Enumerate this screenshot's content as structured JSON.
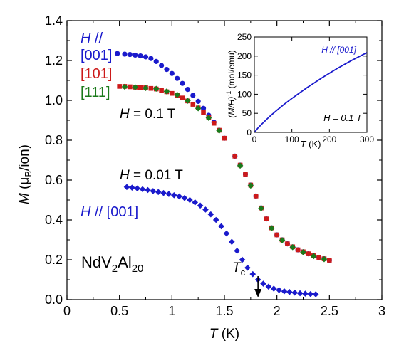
{
  "chart_data": [
    {
      "type": "scatter",
      "xlabel_italic": "T",
      "xlabel_unit": " (K)",
      "ylabel_italic": "M",
      "ylabel_mid": " (μ",
      "ylabel_sub": "B",
      "ylabel_end": "/ion)",
      "xlim": [
        0,
        3
      ],
      "ylim": [
        0,
        1.4
      ],
      "x_ticks": [
        0,
        0.5,
        1,
        1.5,
        2,
        2.5,
        3
      ],
      "x_tick_labels": [
        "0",
        "0.5",
        "1",
        "1.5",
        "2",
        "2.5",
        "3"
      ],
      "y_ticks": [
        0,
        0.2,
        0.4,
        0.6,
        0.8,
        1.0,
        1.2,
        1.4
      ],
      "y_tick_labels": [
        "0.0",
        "0.2",
        "0.4",
        "0.6",
        "0.8",
        "1.0",
        "1.2",
        "1.4"
      ],
      "grid": false,
      "legend": {
        "prefix_italic": "H",
        "prefix_rest": " //",
        "entries": [
          "[001]",
          "[101]",
          "[111]"
        ]
      },
      "annotations": {
        "field_high_italic": "H",
        "field_high_rest": " = 0.1 T",
        "field_low_italic": "H",
        "field_low_rest": " = 0.01 T",
        "dir_low_italic": "H",
        "dir_low_rest": " // [001]",
        "compound_a": "NdV",
        "compound_sub1": "2",
        "compound_b": "Al",
        "compound_sub2": "20",
        "tc_italic": "T",
        "tc_sub": "c",
        "tc_x": 1.82
      },
      "series": [
        {
          "name": "[001]",
          "field": "0.1 T",
          "color": "#1a1acc",
          "marker": "circle",
          "points": [
            [
              0.48,
              1.235
            ],
            [
              0.55,
              1.232
            ],
            [
              0.6,
              1.23
            ],
            [
              0.65,
              1.227
            ],
            [
              0.7,
              1.223
            ],
            [
              0.75,
              1.218
            ],
            [
              0.8,
              1.21
            ],
            [
              0.85,
              1.195
            ],
            [
              0.9,
              1.175
            ],
            [
              0.95,
              1.155
            ],
            [
              1.0,
              1.135
            ],
            [
              1.05,
              1.11
            ],
            [
              1.1,
              1.085
            ],
            [
              1.15,
              1.055
            ],
            [
              1.2,
              1.025
            ],
            [
              1.25,
              0.995
            ],
            [
              1.3,
              0.96
            ],
            [
              1.35,
              0.925
            ],
            [
              1.4,
              0.89
            ],
            [
              1.45,
              0.85
            ],
            [
              1.5,
              0.81
            ],
            [
              1.55,
              0.765
            ],
            [
              1.6,
              0.72
            ],
            [
              1.65,
              0.675
            ],
            [
              1.7,
              0.63
            ],
            [
              1.75,
              0.575
            ],
            [
              1.8,
              0.52
            ],
            [
              1.85,
              0.46
            ],
            [
              1.9,
              0.405
            ],
            [
              1.95,
              0.36
            ],
            [
              2.0,
              0.325
            ],
            [
              2.05,
              0.3
            ],
            [
              2.1,
              0.28
            ],
            [
              2.15,
              0.265
            ],
            [
              2.2,
              0.25
            ],
            [
              2.25,
              0.24
            ],
            [
              2.3,
              0.23
            ],
            [
              2.35,
              0.22
            ],
            [
              2.4,
              0.212
            ],
            [
              2.45,
              0.205
            ],
            [
              2.5,
              0.198
            ]
          ]
        },
        {
          "name": "[101]",
          "field": "0.1 T",
          "color": "#cc1a1a",
          "marker": "square",
          "points": [
            [
              0.5,
              1.07
            ],
            [
              0.55,
              1.07
            ],
            [
              0.6,
              1.068
            ],
            [
              0.65,
              1.066
            ],
            [
              0.7,
              1.065
            ],
            [
              0.75,
              1.063
            ],
            [
              0.8,
              1.06
            ],
            [
              0.85,
              1.057
            ],
            [
              0.9,
              1.05
            ],
            [
              0.95,
              1.043
            ],
            [
              1.0,
              1.035
            ],
            [
              1.05,
              1.025
            ],
            [
              1.1,
              1.012
            ],
            [
              1.15,
              0.997
            ],
            [
              1.2,
              0.98
            ],
            [
              1.25,
              0.962
            ],
            [
              1.3,
              0.94
            ],
            [
              1.35,
              0.915
            ],
            [
              1.4,
              0.885
            ],
            [
              1.45,
              0.85
            ],
            [
              1.5,
              0.81
            ],
            [
              1.55,
              0.765
            ],
            [
              1.6,
              0.72
            ],
            [
              1.65,
              0.675
            ],
            [
              1.7,
              0.63
            ],
            [
              1.75,
              0.575
            ],
            [
              1.8,
              0.52
            ],
            [
              1.85,
              0.46
            ],
            [
              1.9,
              0.405
            ],
            [
              1.95,
              0.36
            ],
            [
              2.0,
              0.325
            ],
            [
              2.05,
              0.3
            ],
            [
              2.1,
              0.28
            ],
            [
              2.15,
              0.265
            ],
            [
              2.2,
              0.25
            ],
            [
              2.25,
              0.24
            ],
            [
              2.3,
              0.23
            ],
            [
              2.35,
              0.22
            ],
            [
              2.4,
              0.212
            ],
            [
              2.45,
              0.205
            ],
            [
              2.5,
              0.198
            ]
          ]
        },
        {
          "name": "[111]",
          "field": "0.1 T",
          "color": "#1a7a1a",
          "marker": "diamond",
          "points": [
            [
              0.55,
              1.068
            ],
            [
              0.65,
              1.066
            ],
            [
              0.75,
              1.062
            ],
            [
              0.85,
              1.058
            ],
            [
              0.95,
              1.045
            ],
            [
              1.05,
              1.028
            ],
            [
              1.15,
              0.998
            ],
            [
              1.25,
              0.96
            ],
            [
              1.35,
              0.912
            ],
            [
              1.45,
              0.848
            ],
            [
              1.55,
              0.762
            ],
            [
              1.65,
              0.672
            ],
            [
              1.75,
              0.572
            ],
            [
              1.85,
              0.458
            ],
            [
              1.95,
              0.358
            ],
            [
              2.05,
              0.298
            ],
            [
              2.15,
              0.263
            ],
            [
              2.25,
              0.238
            ],
            [
              2.35,
              0.218
            ],
            [
              2.45,
              0.203
            ]
          ]
        },
        {
          "name": "[001]",
          "field": "0.01 T",
          "color": "#1a1acc",
          "marker": "diamond",
          "points": [
            [
              0.57,
              0.565
            ],
            [
              0.62,
              0.562
            ],
            [
              0.67,
              0.558
            ],
            [
              0.72,
              0.554
            ],
            [
              0.77,
              0.55
            ],
            [
              0.82,
              0.545
            ],
            [
              0.87,
              0.54
            ],
            [
              0.92,
              0.535
            ],
            [
              0.97,
              0.53
            ],
            [
              1.02,
              0.524
            ],
            [
              1.07,
              0.518
            ],
            [
              1.12,
              0.51
            ],
            [
              1.17,
              0.5
            ],
            [
              1.22,
              0.488
            ],
            [
              1.27,
              0.472
            ],
            [
              1.32,
              0.452
            ],
            [
              1.37,
              0.428
            ],
            [
              1.42,
              0.4
            ],
            [
              1.47,
              0.368
            ],
            [
              1.52,
              0.332
            ],
            [
              1.57,
              0.29
            ],
            [
              1.62,
              0.245
            ],
            [
              1.67,
              0.2
            ],
            [
              1.72,
              0.16
            ],
            [
              1.77,
              0.128
            ],
            [
              1.82,
              0.1
            ],
            [
              1.87,
              0.08
            ],
            [
              1.92,
              0.065
            ],
            [
              1.97,
              0.055
            ],
            [
              2.02,
              0.048
            ],
            [
              2.07,
              0.042
            ],
            [
              2.12,
              0.038
            ],
            [
              2.17,
              0.035
            ],
            [
              2.22,
              0.032
            ],
            [
              2.27,
              0.03
            ],
            [
              2.32,
              0.028
            ],
            [
              2.37,
              0.027
            ]
          ]
        }
      ]
    },
    {
      "type": "line",
      "xlabel_italic": "T",
      "xlabel_unit": " (K)",
      "ylabel": "(M/H)",
      "ylabel_sup": "-1",
      "ylabel_unit": " (mol/emu)",
      "xlim": [
        0,
        300
      ],
      "ylim": [
        0,
        250
      ],
      "x_ticks": [
        0,
        100,
        200,
        300
      ],
      "x_tick_labels": [
        "0",
        "100",
        "200",
        "300"
      ],
      "y_ticks": [
        0,
        50,
        100,
        150,
        200,
        250
      ],
      "y_tick_labels": [
        "0",
        "50",
        "100",
        "150",
        "200",
        "250"
      ],
      "legend_label": "H // [001]",
      "field_label": "H = 0.1 T",
      "series": [
        {
          "color": "#1a1acc",
          "points": [
            [
              2,
              2
            ],
            [
              5,
              6
            ],
            [
              10,
              12
            ],
            [
              20,
              22
            ],
            [
              40,
              41
            ],
            [
              60,
              58
            ],
            [
              80,
              74
            ],
            [
              100,
              89
            ],
            [
              120,
              103
            ],
            [
              140,
              117
            ],
            [
              160,
              130
            ],
            [
              180,
              143
            ],
            [
              200,
              155
            ],
            [
              220,
              167
            ],
            [
              240,
              178
            ],
            [
              260,
              189
            ],
            [
              280,
              199
            ],
            [
              300,
              209
            ]
          ]
        }
      ]
    }
  ]
}
